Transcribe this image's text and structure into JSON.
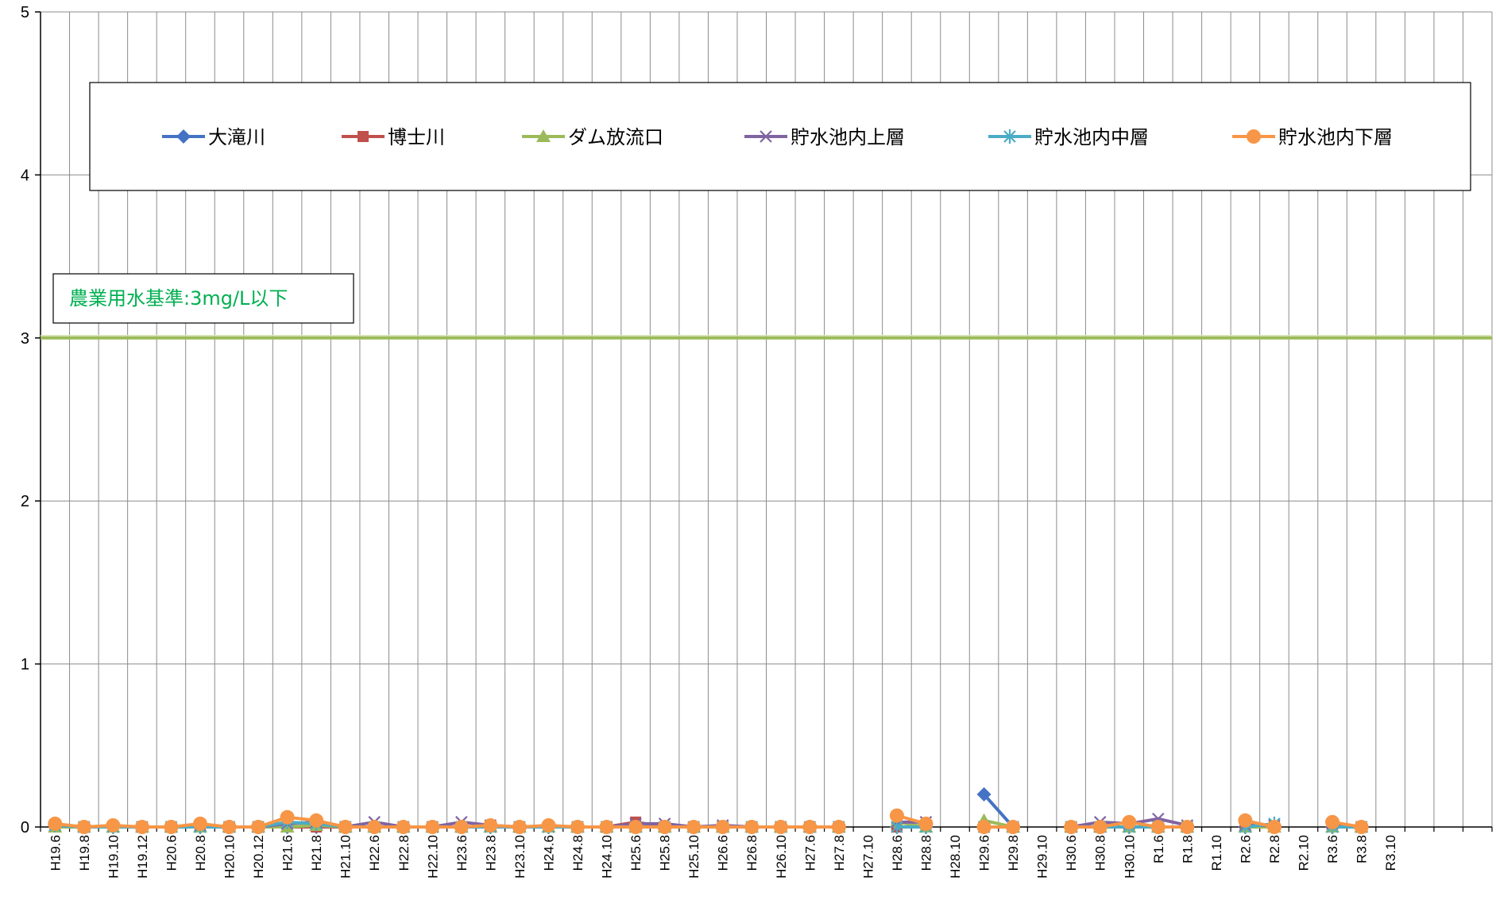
{
  "chart_data": {
    "type": "line",
    "title": "",
    "xlabel": "",
    "ylabel": "",
    "ylim": [
      0,
      5
    ],
    "yticks": [
      0,
      1,
      2,
      3,
      4,
      5
    ],
    "grid": "vertical lines at every category, horizontal lines at every integer",
    "legend_position": "top",
    "categories": [
      "H19.6",
      "H19.8",
      "H19.10",
      "H19.12",
      "H20.6",
      "H20.8",
      "H20.10",
      "H20.12",
      "H21.6",
      "H21.8",
      "H21.10",
      "H22.6",
      "H22.8",
      "H22.10",
      "H23.6",
      "H23.8",
      "H23.10",
      "H24.6",
      "H24.8",
      "H24.10",
      "H25.6",
      "H25.8",
      "H25.10",
      "H26.6",
      "H26.8",
      "H26.10",
      "H27.6",
      "H27.8",
      "H27.10",
      "H28.6",
      "H28.8",
      "H28.10",
      "H29.6",
      "H29.8",
      "H29.10",
      "H30.6",
      "H30.8",
      "H30.10",
      "R1.6",
      "R1.8",
      "R1.10",
      "R2.6",
      "R2.8",
      "R2.10",
      "R3.6",
      "R3.8",
      "R3.10",
      "",
      "",
      ""
    ],
    "series": [
      {
        "name": "大滝川",
        "color": "#4472C4",
        "marker": "diamond",
        "values": [
          0.01,
          0,
          0,
          0,
          0,
          0,
          0,
          0,
          0,
          0,
          0,
          0,
          0,
          0,
          0,
          0,
          0,
          0,
          0,
          0,
          0,
          0,
          0,
          0,
          0,
          0,
          0,
          0,
          null,
          0,
          0,
          null,
          0.2,
          0,
          null,
          0,
          0,
          0,
          0,
          0,
          null,
          0,
          0,
          null,
          0,
          0,
          null,
          null,
          null,
          null
        ]
      },
      {
        "name": "博士川",
        "color": "#C0504D",
        "marker": "square",
        "values": [
          0,
          0,
          0,
          0,
          0,
          0,
          0,
          0,
          0,
          0,
          0,
          0,
          0,
          0,
          0,
          0,
          0,
          0,
          0,
          0,
          0.03,
          0,
          0,
          0,
          0,
          0,
          0,
          0,
          null,
          0,
          0,
          null,
          0,
          0,
          null,
          0,
          0,
          0,
          0,
          0,
          null,
          0,
          0,
          null,
          0,
          0,
          null,
          null,
          null,
          null
        ]
      },
      {
        "name": "ダム放流口",
        "color": "#9BBB59",
        "marker": "triangle",
        "values": [
          0,
          0,
          0,
          0,
          0,
          0,
          0,
          0,
          0,
          0.01,
          0,
          0,
          0,
          0,
          0,
          0,
          0,
          0,
          0,
          0,
          0,
          0,
          0,
          0,
          0,
          0,
          0,
          0,
          null,
          0.03,
          0,
          null,
          0.04,
          0,
          null,
          0,
          0,
          0,
          0,
          0,
          null,
          0,
          0,
          null,
          0,
          0,
          null,
          null,
          null,
          null
        ]
      },
      {
        "name": "貯水池内上層",
        "color": "#8064A2",
        "marker": "x",
        "values": [
          0.01,
          0,
          0,
          0,
          0,
          0.01,
          0,
          0,
          0.02,
          0.03,
          0,
          0.03,
          0,
          0,
          0.03,
          0.01,
          0,
          0,
          0,
          0,
          0.02,
          0.02,
          0,
          0.01,
          0,
          0,
          0,
          0,
          null,
          0.03,
          0.03,
          null,
          0,
          0,
          null,
          0,
          0.03,
          0.02,
          0.05,
          0.01,
          null,
          0.01,
          0.01,
          null,
          0.02,
          0,
          null,
          null,
          null,
          null
        ]
      },
      {
        "name": "貯水池内中層",
        "color": "#4BACC6",
        "marker": "star",
        "values": [
          0.01,
          0,
          0,
          0,
          0,
          0,
          0,
          0,
          0.03,
          0.02,
          0,
          0,
          0,
          0,
          0,
          0,
          0,
          0,
          0,
          0,
          0,
          0,
          0,
          0,
          0,
          0,
          0,
          0,
          null,
          0,
          0,
          null,
          0,
          0,
          null,
          0,
          0,
          0,
          0,
          0,
          null,
          0,
          0.02,
          null,
          0,
          0,
          null,
          null,
          null,
          null
        ]
      },
      {
        "name": "貯水池内下層",
        "color": "#F79646",
        "marker": "circle",
        "values": [
          0.02,
          0,
          0.01,
          0,
          0,
          0.02,
          0,
          0,
          0.06,
          0.04,
          0,
          0,
          0,
          0,
          0,
          0.01,
          0,
          0.01,
          0,
          0,
          0,
          0,
          0,
          0,
          0,
          0,
          0,
          0,
          null,
          0.07,
          0.02,
          null,
          0,
          0,
          null,
          0,
          0,
          0.03,
          0,
          0,
          null,
          0.04,
          0,
          null,
          0.03,
          0,
          null,
          null,
          null,
          null
        ]
      }
    ],
    "reference_line": {
      "value": 3,
      "label": "農業用水基準:3mg/L以下",
      "line_color": "#9BBB59",
      "text_color": "#00B050"
    }
  }
}
